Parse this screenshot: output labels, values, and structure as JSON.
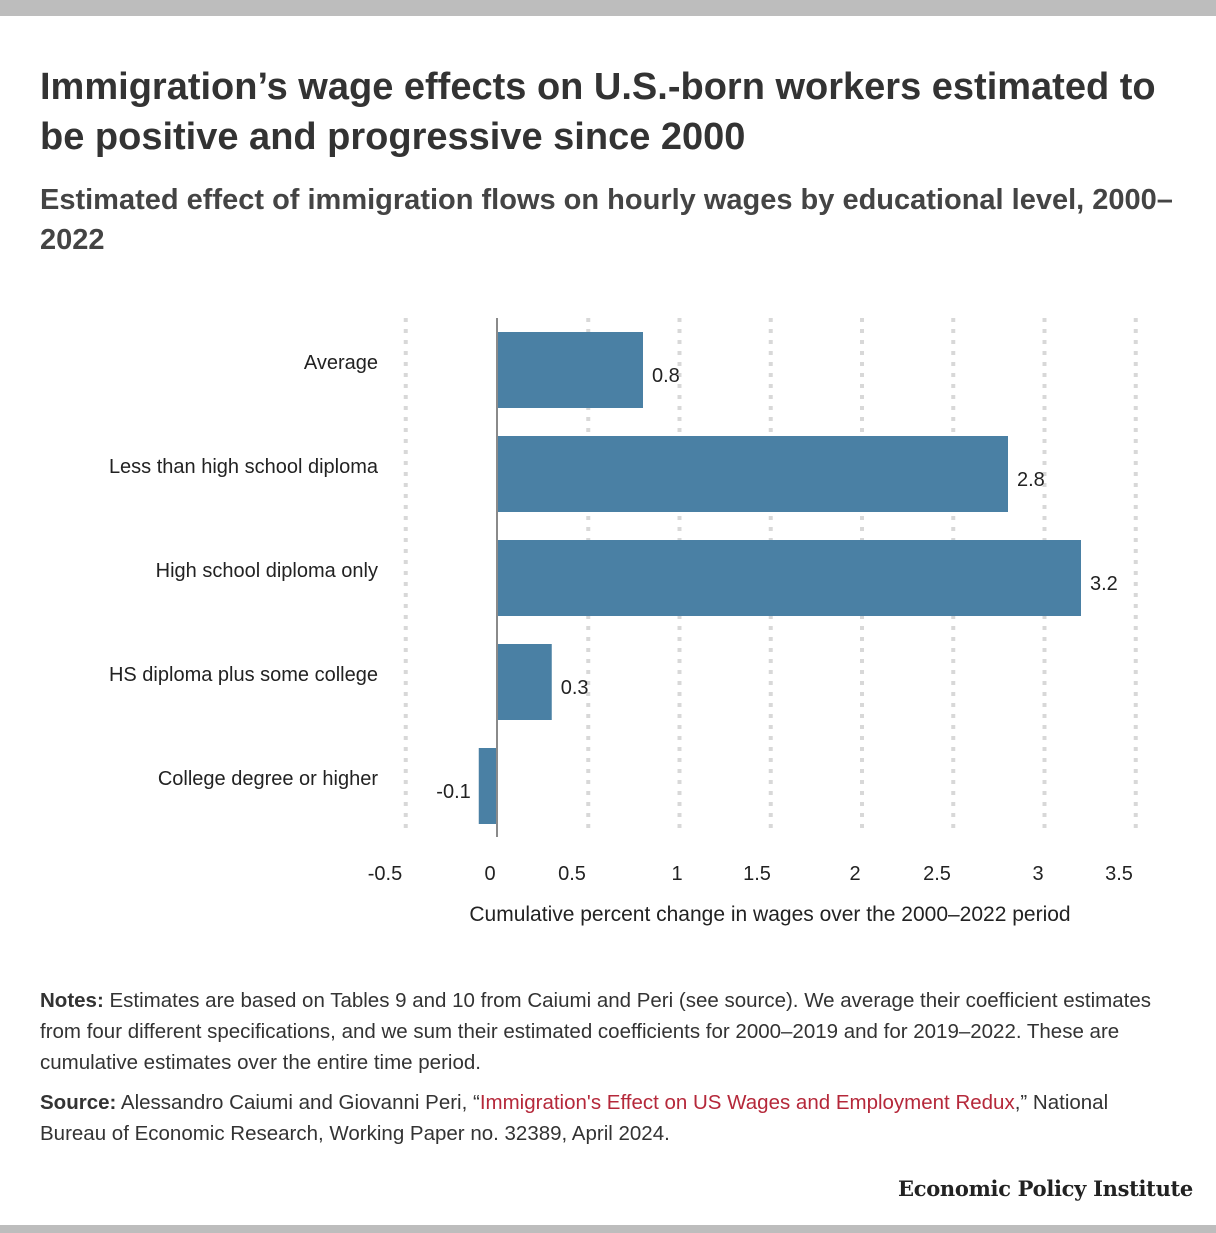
{
  "header": {
    "title": "Immigration’s wage effects on U.S.-born workers estimated to be positive and progressive since 2000",
    "subtitle": "Estimated effect of immigration flows on hourly wages by educational level, 2000–2022"
  },
  "chart_data": {
    "type": "bar",
    "orientation": "horizontal",
    "categories": [
      "Average",
      "Less than high school diploma",
      "High school diploma only",
      "HS diploma plus some college",
      "College degree or higher"
    ],
    "values": [
      0.8,
      2.8,
      3.2,
      0.3,
      -0.1
    ],
    "value_labels": [
      "0.8",
      "2.8",
      "3.2",
      "0.3",
      "-0.1"
    ],
    "xlabel": "Cumulative percent change in wages over the 2000–2022 period",
    "xticks": [
      -0.5,
      0,
      0.5,
      1,
      1.5,
      2,
      2.5,
      3,
      3.5
    ],
    "xtick_labels": [
      "-0.5",
      "0",
      "0.5",
      "1",
      "1.5",
      "2",
      "2.5",
      "3",
      "3.5"
    ],
    "xlim": [
      -0.5,
      3.5
    ],
    "grid": "vertical dotted",
    "bar_color": "#4a80a4"
  },
  "notes": {
    "notes_label": "Notes:",
    "notes_text": " Estimates are based on Tables 9 and 10 from Caiumi and Peri (see source). We average their coefficient estimates from four different specifications, and we sum their estimated coefficients for 2000–2019 and for 2019–2022. These are cumulative estimates over the entire time period.",
    "source_label": "Source:",
    "source_pre": " Alessandro Caiumi and Giovanni Peri, “",
    "source_link": "Immigration's Effect on US Wages and Employment Redux",
    "source_post": ",” National Bureau of Economic Research, Working Paper no. 32389, April 2024."
  },
  "brand": "Economic Policy Institute"
}
